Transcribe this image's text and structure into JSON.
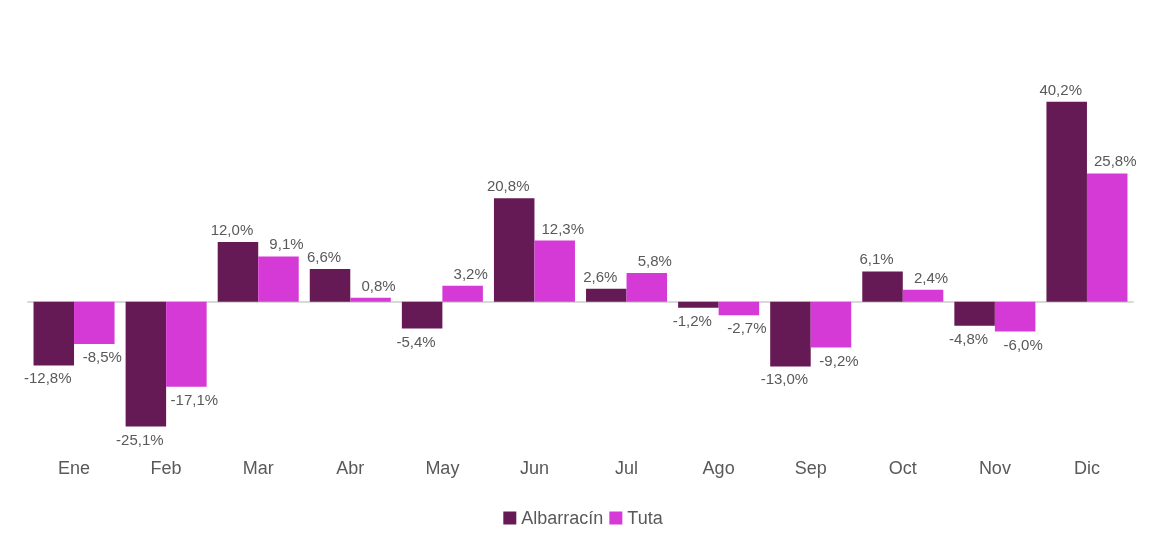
{
  "chart_data": {
    "type": "bar",
    "categories": [
      "Ene",
      "Feb",
      "Mar",
      "Abr",
      "May",
      "Jun",
      "Jul",
      "Ago",
      "Sep",
      "Oct",
      "Nov",
      "Dic"
    ],
    "series": [
      {
        "name": "Albarracín",
        "color": "#661a55",
        "values": [
          -12.8,
          -25.1,
          12.0,
          6.6,
          -5.4,
          20.8,
          2.6,
          -1.2,
          -13.0,
          6.1,
          -4.8,
          40.2
        ],
        "value_labels": [
          "-12,8%",
          "-25,1%",
          "12,0%",
          "6,6%",
          "-5,4%",
          "20,8%",
          "2,6%",
          "-1,2%",
          "-13,0%",
          "6,1%",
          "-4,8%",
          "40,2%"
        ]
      },
      {
        "name": "Tuta",
        "color": "#d63ad6",
        "values": [
          -8.5,
          -17.1,
          9.1,
          0.8,
          3.2,
          12.3,
          5.8,
          -2.7,
          -9.2,
          2.4,
          -6.0,
          25.8
        ],
        "value_labels": [
          "-8,5%",
          "-17,1%",
          "9,1%",
          "0,8%",
          "3,2%",
          "12,3%",
          "5,8%",
          "-2,7%",
          "-9,2%",
          "2,4%",
          "-6,0%",
          "25,8%"
        ]
      }
    ],
    "legend": "bottom"
  }
}
